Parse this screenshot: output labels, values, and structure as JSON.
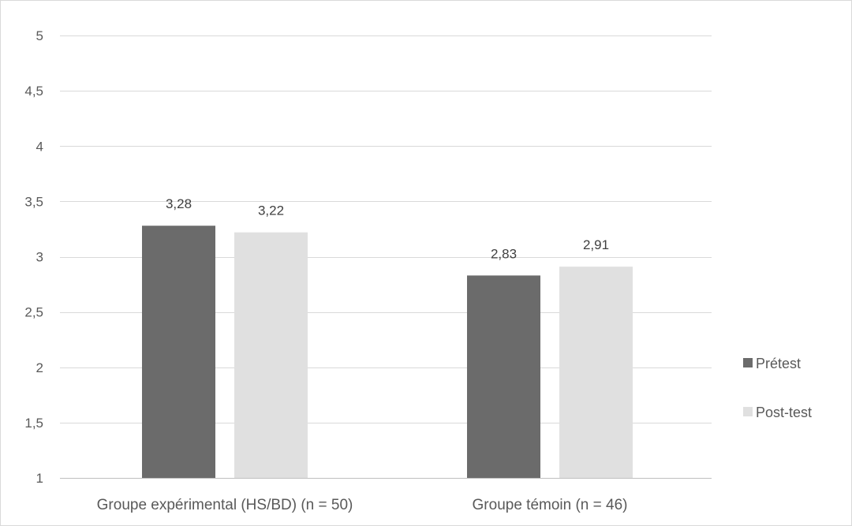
{
  "chart_data": {
    "type": "bar",
    "title": "",
    "xlabel": "",
    "ylabel": "",
    "categories": [
      "Groupe expérimental (HS/BD) (n = 50)",
      "Groupe témoin (n = 46)"
    ],
    "series": [
      {
        "name": "Prétest",
        "values": [
          3.28,
          2.83
        ],
        "labels": [
          "3,28",
          "2,83"
        ],
        "color": "#6b6b6b"
      },
      {
        "name": "Post-test",
        "values": [
          3.22,
          2.91
        ],
        "labels": [
          "3,22",
          "2,91"
        ],
        "color": "#e0e0e0"
      }
    ],
    "ylim": [
      1,
      5
    ],
    "yticks": [
      1,
      1.5,
      2,
      2.5,
      3,
      3.5,
      4,
      4.5,
      5
    ],
    "ytick_labels": [
      "1",
      "1,5",
      "2",
      "2,5",
      "3",
      "3,5",
      "4",
      "4,5",
      "5"
    ],
    "grid": true,
    "legend": "right"
  },
  "colors": {
    "gridline": "#d9d9d9",
    "axis": "#bfbfbf"
  }
}
